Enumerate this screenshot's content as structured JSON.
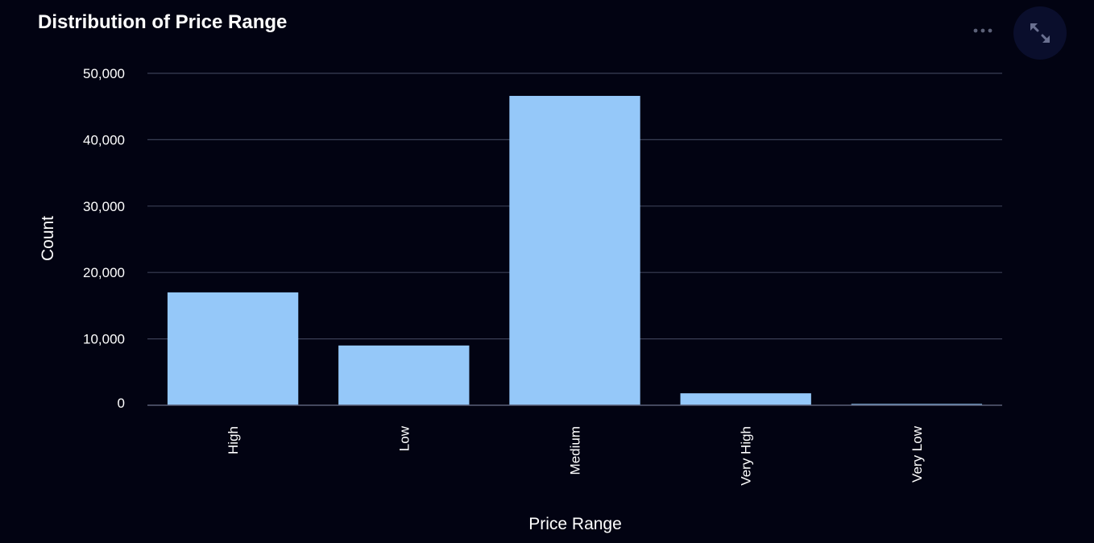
{
  "toolbar": {
    "menu_icon": "more-horizontal-icon",
    "expand_icon": "expand-icon"
  },
  "colors": {
    "background": "#020312",
    "bar": "#95c8f9",
    "grid": "#3a3f55",
    "baseline": "#5a6078",
    "button_bg": "#0a0e2c",
    "icon": "#5c6178"
  },
  "chart_data": {
    "type": "bar",
    "title": "Distribution of Price Range",
    "xlabel": "Price Range",
    "ylabel": "Count",
    "categories": [
      "High",
      "Low",
      "Medium",
      "Very High",
      "Very Low"
    ],
    "values": [
      17000,
      9000,
      46600,
      1800,
      200
    ],
    "ylim": [
      0,
      50000
    ],
    "yticks": [
      0,
      10000,
      20000,
      30000,
      40000,
      50000
    ],
    "ytick_labels": [
      "0",
      "10,000",
      "20,000",
      "30,000",
      "40,000",
      "50,000"
    ],
    "grid": true,
    "legend": "none"
  }
}
